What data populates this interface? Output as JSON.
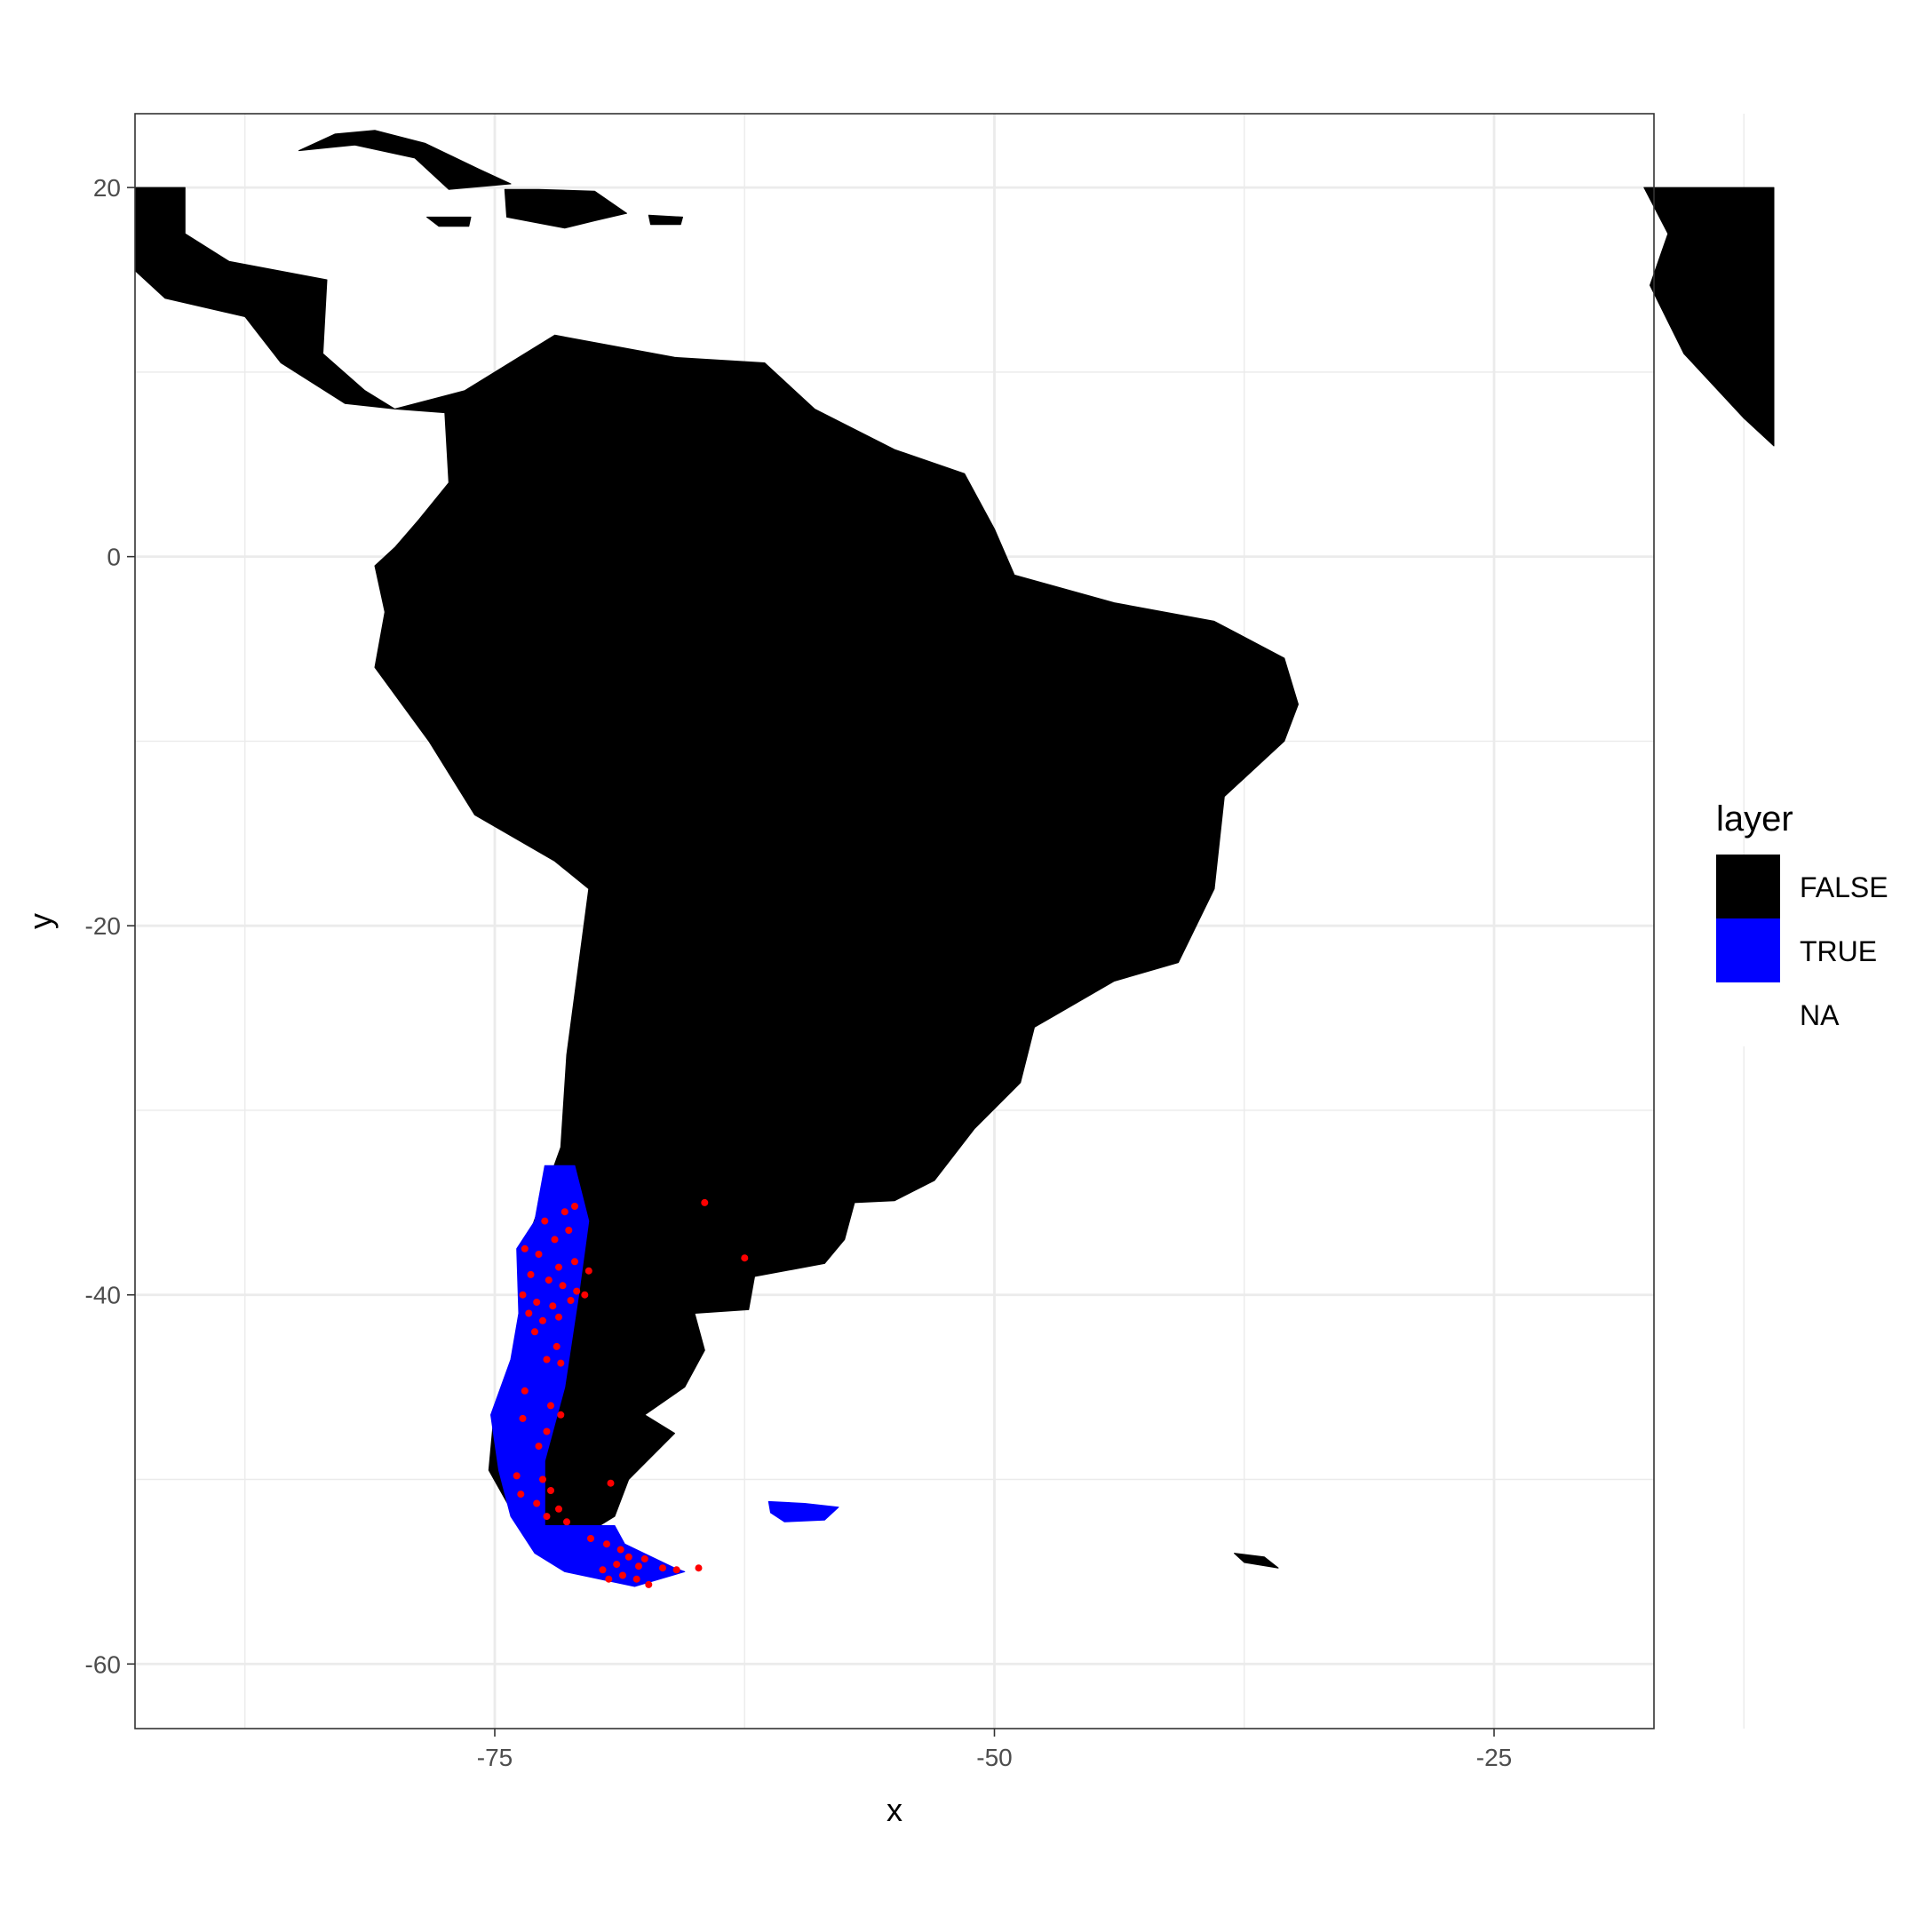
{
  "chart_data": {
    "type": "raster-map",
    "xlabel": "x",
    "ylabel": "y",
    "xlim": [
      -93,
      -17
    ],
    "ylim": [
      -63.5,
      24
    ],
    "x_ticks": [
      -75,
      -50,
      -25
    ],
    "y_ticks": [
      20,
      0,
      -20,
      -40,
      -60
    ],
    "x_minor": [
      -87.5,
      -62.5,
      -37.5,
      -12.5
    ],
    "y_minor": [
      10,
      -10,
      -30,
      -50
    ],
    "grid": true,
    "legend": {
      "title": "layer",
      "position": "right",
      "entries": [
        {
          "label": "FALSE",
          "color": "#000000"
        },
        {
          "label": "TRUE",
          "color": "#0000ff"
        },
        {
          "label": "NA",
          "color": "#ffffff"
        }
      ]
    },
    "colors": {
      "land": "#000000",
      "range": "#0000ff",
      "points": "#ff0000",
      "grid": "#ebebeb"
    },
    "regions": {
      "south_america": [
        [
          -80,
          8
        ],
        [
          -76.5,
          9
        ],
        [
          -72,
          12
        ],
        [
          -66,
          10.8
        ],
        [
          -61.5,
          10.5
        ],
        [
          -59,
          8
        ],
        [
          -55,
          5.8
        ],
        [
          -51.5,
          4.5
        ],
        [
          -50,
          1.5
        ],
        [
          -49,
          -1
        ],
        [
          -44,
          -2.5
        ],
        [
          -39,
          -3.5
        ],
        [
          -35.5,
          -5.5
        ],
        [
          -34.8,
          -8
        ],
        [
          -35.5,
          -10
        ],
        [
          -38.5,
          -13
        ],
        [
          -39,
          -18
        ],
        [
          -40.8,
          -22
        ],
        [
          -44,
          -23
        ],
        [
          -48,
          -25.5
        ],
        [
          -48.7,
          -28.5
        ],
        [
          -51,
          -31
        ],
        [
          -53,
          -33.8
        ],
        [
          -55,
          -34.9
        ],
        [
          -57,
          -35
        ],
        [
          -57.5,
          -37
        ],
        [
          -58.5,
          -38.3
        ],
        [
          -62,
          -39
        ],
        [
          -62.3,
          -40.8
        ],
        [
          -65,
          -41
        ],
        [
          -64.5,
          -43
        ],
        [
          -65.5,
          -45
        ],
        [
          -67.5,
          -46.5
        ],
        [
          -66,
          -47.5
        ],
        [
          -68.3,
          -50
        ],
        [
          -69,
          -52
        ],
        [
          -70.5,
          -53
        ],
        [
          -72,
          -53.5
        ],
        [
          -74,
          -52
        ],
        [
          -75.3,
          -49.5
        ],
        [
          -75,
          -46
        ],
        [
          -73.5,
          -42.5
        ],
        [
          -73.7,
          -38
        ],
        [
          -71.7,
          -32
        ],
        [
          -71.4,
          -27
        ],
        [
          -70.3,
          -18
        ],
        [
          -72,
          -16.5
        ],
        [
          -76,
          -14
        ],
        [
          -78.3,
          -10
        ],
        [
          -81,
          -6
        ],
        [
          -80.5,
          -3
        ],
        [
          -81,
          -0.5
        ],
        [
          -80,
          0.5
        ],
        [
          -78.8,
          2
        ],
        [
          -77.3,
          4
        ],
        [
          -77.5,
          7.8
        ]
      ],
      "central_america": [
        [
          -80,
          8
        ],
        [
          -82.5,
          8.3
        ],
        [
          -85.7,
          10.5
        ],
        [
          -87.5,
          13
        ],
        [
          -91.5,
          14
        ],
        [
          -93,
          15.5
        ],
        [
          -93,
          20
        ],
        [
          -90.5,
          20
        ],
        [
          -90.5,
          17.5
        ],
        [
          -88.3,
          16
        ],
        [
          -83.4,
          15
        ],
        [
          -83.6,
          11
        ],
        [
          -81.5,
          9
        ]
      ],
      "africa": [
        [
          -17.5,
          20
        ],
        [
          -11,
          20
        ],
        [
          -11,
          6
        ],
        [
          -12.5,
          7.5
        ],
        [
          -15.5,
          11
        ],
        [
          -17.2,
          14.7
        ],
        [
          -16.3,
          17.5
        ]
      ],
      "chile_range": [
        [
          -72.5,
          -33
        ],
        [
          -71,
          -33
        ],
        [
          -70.3,
          -36
        ],
        [
          -70.8,
          -40
        ],
        [
          -71.5,
          -45
        ],
        [
          -72.5,
          -49
        ],
        [
          -72.5,
          -52.5
        ],
        [
          -69,
          -52.5
        ],
        [
          -68.5,
          -53.5
        ],
        [
          -66,
          -54.8
        ],
        [
          -65.5,
          -55
        ],
        [
          -68,
          -55.8
        ],
        [
          -71.5,
          -55
        ],
        [
          -73,
          -54
        ],
        [
          -74.2,
          -52
        ],
        [
          -74.8,
          -49.5
        ],
        [
          -75.2,
          -46.5
        ],
        [
          -74.2,
          -43.5
        ],
        [
          -73.8,
          -41
        ],
        [
          -73.9,
          -37.5
        ],
        [
          -73,
          -36
        ]
      ],
      "falklands": [
        [
          -61.3,
          -51.2
        ],
        [
          -59.5,
          -51.3
        ],
        [
          -57.8,
          -51.5
        ],
        [
          -58.5,
          -52.2
        ],
        [
          -60.5,
          -52.3
        ],
        [
          -61.2,
          -51.8
        ]
      ],
      "south_georgia": [
        [
          -38,
          -54
        ],
        [
          -36.5,
          -54.2
        ],
        [
          -35.8,
          -54.8
        ],
        [
          -37.5,
          -54.5
        ]
      ],
      "cuba": [
        [
          -84.8,
          22
        ],
        [
          -83,
          22.9
        ],
        [
          -81,
          23.1
        ],
        [
          -78.5,
          22.4
        ],
        [
          -75.8,
          21
        ],
        [
          -74.2,
          20.2
        ],
        [
          -77.3,
          19.9
        ],
        [
          -79,
          21.6
        ],
        [
          -82,
          22.3
        ]
      ],
      "hispaniola": [
        [
          -74.5,
          19.9
        ],
        [
          -72.8,
          19.9
        ],
        [
          -70,
          19.8
        ],
        [
          -68.4,
          18.6
        ],
        [
          -70,
          18.2
        ],
        [
          -71.5,
          17.8
        ],
        [
          -74.4,
          18.4
        ]
      ],
      "jamaica": [
        [
          -78.4,
          18.4
        ],
        [
          -76.2,
          18.4
        ],
        [
          -76.3,
          17.9
        ],
        [
          -77.8,
          17.9
        ]
      ],
      "puerto_rico": [
        [
          -67.3,
          18.5
        ],
        [
          -65.6,
          18.4
        ],
        [
          -65.7,
          18
        ],
        [
          -67.2,
          18
        ]
      ]
    },
    "points": [
      [
        -64.5,
        -35
      ],
      [
        -62.5,
        -38
      ],
      [
        -72.5,
        -36
      ],
      [
        -71.5,
        -35.5
      ],
      [
        -71,
        -35.2
      ],
      [
        -72,
        -37
      ],
      [
        -71.3,
        -36.5
      ],
      [
        -73.5,
        -37.5
      ],
      [
        -72.8,
        -37.8
      ],
      [
        -71.8,
        -38.5
      ],
      [
        -71,
        -38.2
      ],
      [
        -70.3,
        -38.7
      ],
      [
        -73.2,
        -38.9
      ],
      [
        -72.3,
        -39.2
      ],
      [
        -71.6,
        -39.5
      ],
      [
        -70.9,
        -39.8
      ],
      [
        -73.6,
        -40
      ],
      [
        -72.9,
        -40.4
      ],
      [
        -72.1,
        -40.6
      ],
      [
        -71.2,
        -40.3
      ],
      [
        -70.5,
        -40
      ],
      [
        -73.3,
        -41
      ],
      [
        -72.6,
        -41.4
      ],
      [
        -71.8,
        -41.2
      ],
      [
        -73,
        -42
      ],
      [
        -71.9,
        -42.8
      ],
      [
        -72.4,
        -43.5
      ],
      [
        -71.7,
        -43.7
      ],
      [
        -72.2,
        -46
      ],
      [
        -71.7,
        -46.5
      ],
      [
        -73.5,
        -45.2
      ],
      [
        -73.6,
        -46.7
      ],
      [
        -72.4,
        -47.4
      ],
      [
        -72.8,
        -48.2
      ],
      [
        -73.9,
        -49.8
      ],
      [
        -72.6,
        -50
      ],
      [
        -72.2,
        -50.6
      ],
      [
        -73.7,
        -50.8
      ],
      [
        -72.9,
        -51.3
      ],
      [
        -71.8,
        -51.6
      ],
      [
        -72.4,
        -52
      ],
      [
        -71.4,
        -52.3
      ],
      [
        -69.2,
        -50.2
      ],
      [
        -70.2,
        -53.2
      ],
      [
        -69.4,
        -53.5
      ],
      [
        -68.7,
        -53.8
      ],
      [
        -68.3,
        -54.2
      ],
      [
        -67.5,
        -54.3
      ],
      [
        -67.8,
        -54.7
      ],
      [
        -66.6,
        -54.8
      ],
      [
        -68.9,
        -54.6
      ],
      [
        -69.6,
        -54.9
      ],
      [
        -68.6,
        -55.2
      ],
      [
        -69.3,
        -55.4
      ],
      [
        -67.9,
        -55.4
      ],
      [
        -67.3,
        -55.7
      ],
      [
        -65.9,
        -54.9
      ],
      [
        -64.8,
        -54.8
      ]
    ]
  }
}
